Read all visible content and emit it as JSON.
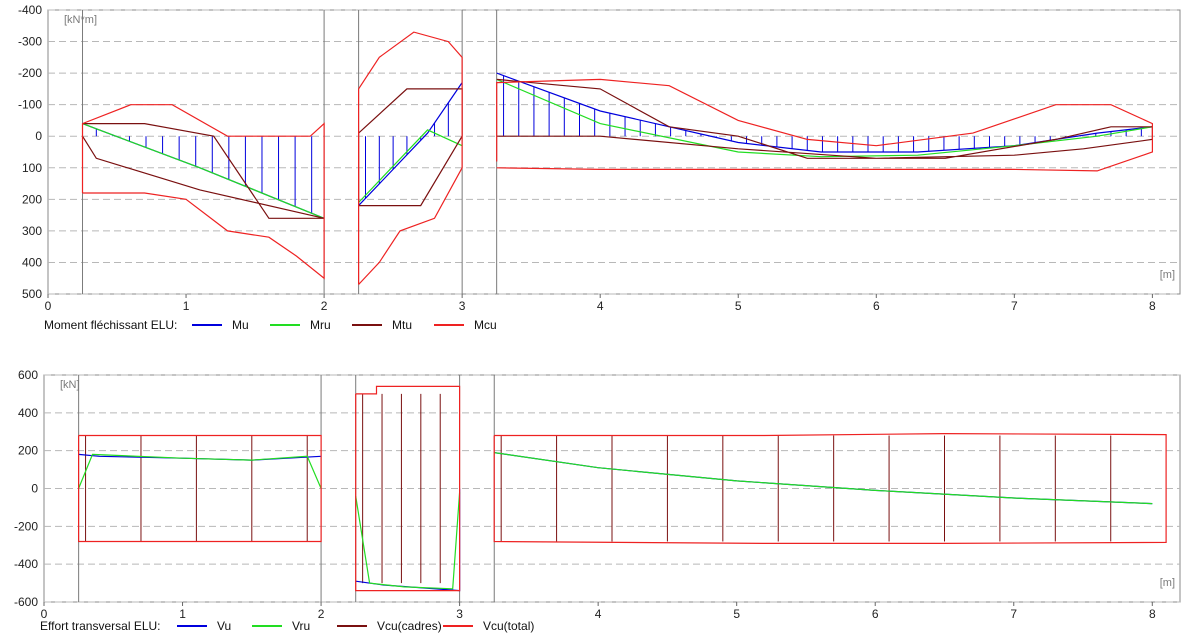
{
  "chart_data": [
    {
      "type": "line",
      "title": "Moment fléchissant ELU:",
      "unit_label": "[kN*m]",
      "x_unit_label": "[m]",
      "xlim": [
        0,
        8.2
      ],
      "ylim": [
        -400,
        500
      ],
      "y_inverted": true,
      "x_ticks": [
        0,
        1,
        2,
        3,
        4,
        5,
        6,
        7,
        8
      ],
      "y_ticks": [
        -400,
        -300,
        -200,
        -100,
        0,
        100,
        200,
        300,
        400,
        500
      ],
      "grid": true,
      "legend_position": "bottom-left",
      "supports": [
        0.25,
        2.0,
        2.25,
        3.0,
        3.25
      ],
      "series": [
        {
          "name": "Mu",
          "color": "#0000dd",
          "segments": [
            [
              [
                0.25,
                -40
              ],
              [
                1.1,
                100
              ],
              [
                2.0,
                260
              ]
            ],
            [
              [
                2.25,
                220
              ],
              [
                2.75,
                -10
              ],
              [
                3.0,
                -170
              ]
            ],
            [
              [
                3.25,
                -200
              ],
              [
                4.0,
                -80
              ],
              [
                5.0,
                20
              ],
              [
                5.6,
                50
              ],
              [
                6.3,
                50
              ],
              [
                7.0,
                30
              ],
              [
                7.6,
                -10
              ],
              [
                8.0,
                -30
              ]
            ]
          ]
        },
        {
          "name": "Mru",
          "color": "#22dd22",
          "segments": [
            [
              [
                0.25,
                -40
              ],
              [
                1.1,
                100
              ],
              [
                2.0,
                260
              ]
            ],
            [
              [
                2.25,
                210
              ],
              [
                2.75,
                -20
              ],
              [
                3.0,
                30
              ]
            ],
            [
              [
                3.25,
                -180
              ],
              [
                4.0,
                -40
              ],
              [
                5.0,
                50
              ],
              [
                5.6,
                65
              ],
              [
                6.3,
                60
              ],
              [
                7.0,
                30
              ],
              [
                7.6,
                0
              ],
              [
                8.0,
                -30
              ]
            ]
          ]
        },
        {
          "name": "Mtu",
          "color": "#7a1010",
          "segments": [
            [
              [
                0.25,
                -40
              ],
              [
                0.7,
                -40
              ],
              [
                1.2,
                0
              ],
              [
                1.6,
                260
              ],
              [
                2.0,
                260
              ],
              [
                1.1,
                170
              ],
              [
                0.35,
                70
              ],
              [
                0.25,
                0
              ]
            ],
            [
              [
                2.25,
                220
              ],
              [
                2.25,
                -10
              ],
              [
                2.6,
                -150
              ],
              [
                3.0,
                -150
              ],
              [
                3.0,
                0
              ],
              [
                2.7,
                220
              ],
              [
                2.25,
                220
              ]
            ],
            [
              [
                3.25,
                -180
              ],
              [
                4.0,
                -150
              ],
              [
                4.5,
                -30
              ],
              [
                5.0,
                0
              ],
              [
                5.5,
                70
              ],
              [
                6.5,
                70
              ],
              [
                7.3,
                10
              ],
              [
                7.7,
                -30
              ],
              [
                8.0,
                -30
              ],
              [
                8.0,
                10
              ],
              [
                7.5,
                40
              ],
              [
                7.0,
                60
              ],
              [
                6.0,
                70
              ],
              [
                5.0,
                40
              ],
              [
                4.0,
                0
              ],
              [
                3.25,
                0
              ]
            ]
          ]
        },
        {
          "name": "Mcu",
          "color": "#ee2222",
          "segments": [
            [
              [
                0.25,
                180
              ],
              [
                0.25,
                -40
              ],
              [
                0.6,
                -100
              ],
              [
                0.9,
                -100
              ],
              [
                1.3,
                0
              ],
              [
                1.6,
                0
              ],
              [
                1.9,
                0
              ],
              [
                2.0,
                -40
              ],
              [
                2.0,
                450
              ],
              [
                1.8,
                380
              ],
              [
                1.6,
                320
              ],
              [
                1.3,
                300
              ],
              [
                1.0,
                200
              ],
              [
                0.7,
                180
              ],
              [
                0.25,
                180
              ]
            ],
            [
              [
                2.25,
                470
              ],
              [
                2.25,
                -150
              ],
              [
                2.4,
                -250
              ],
              [
                2.65,
                -330
              ],
              [
                2.9,
                -300
              ],
              [
                3.0,
                -250
              ],
              [
                3.0,
                100
              ],
              [
                2.8,
                260
              ],
              [
                2.55,
                300
              ],
              [
                2.4,
                400
              ],
              [
                2.25,
                470
              ]
            ],
            [
              [
                3.25,
                80
              ],
              [
                3.25,
                -170
              ],
              [
                4.0,
                -180
              ],
              [
                4.5,
                -160
              ],
              [
                5.0,
                -50
              ],
              [
                5.5,
                10
              ],
              [
                6.0,
                30
              ],
              [
                6.7,
                -10
              ],
              [
                7.3,
                -100
              ],
              [
                7.7,
                -100
              ],
              [
                8.0,
                -40
              ],
              [
                8.0,
                50
              ],
              [
                7.6,
                110
              ],
              [
                7.0,
                105
              ],
              [
                6.0,
                105
              ],
              [
                5.0,
                105
              ],
              [
                4.0,
                105
              ],
              [
                3.25,
                100
              ]
            ]
          ]
        }
      ],
      "stirrup_rows": [
        {
          "color": "#0000dd",
          "span": [
            0.35,
            2.0
          ],
          "step": 0.12
        },
        {
          "color": "#0000dd",
          "span": [
            2.3,
            3.0
          ],
          "step": 0.1
        },
        {
          "color": "#0000dd",
          "span": [
            3.3,
            8.0
          ],
          "step": 0.11
        }
      ]
    },
    {
      "type": "line",
      "title": "Effort transversal ELU:",
      "unit_label": "[kN]",
      "x_unit_label": "[m]",
      "xlim": [
        0,
        8.2
      ],
      "ylim": [
        -600,
        600
      ],
      "y_inverted": false,
      "x_ticks": [
        0,
        1,
        2,
        3,
        4,
        5,
        6,
        7,
        8
      ],
      "y_ticks": [
        -600,
        -400,
        -200,
        0,
        200,
        400,
        600
      ],
      "grid": true,
      "legend_position": "bottom-left",
      "supports": [
        0.25,
        2.0,
        2.25,
        3.0,
        3.25
      ],
      "series": [
        {
          "name": "Vu",
          "color": "#0000dd",
          "segments": [
            [
              [
                0.25,
                180
              ],
              [
                0.4,
                170
              ],
              [
                1.0,
                160
              ],
              [
                1.5,
                150
              ],
              [
                2.0,
                170
              ]
            ],
            [
              [
                2.25,
                -490
              ],
              [
                2.45,
                -510
              ],
              [
                3.0,
                -540
              ],
              [
                3.0,
                0
              ]
            ],
            [
              [
                3.25,
                190
              ],
              [
                4.0,
                110
              ],
              [
                5.0,
                40
              ],
              [
                6.0,
                -10
              ],
              [
                7.0,
                -50
              ],
              [
                8.0,
                -80
              ]
            ]
          ]
        },
        {
          "name": "Vru",
          "color": "#22dd22",
          "segments": [
            [
              [
                0.25,
                0
              ],
              [
                0.35,
                180
              ],
              [
                1.0,
                160
              ],
              [
                1.5,
                150
              ],
              [
                1.9,
                170
              ],
              [
                2.0,
                0
              ]
            ],
            [
              [
                2.25,
                -40
              ],
              [
                2.35,
                -500
              ],
              [
                2.6,
                -520
              ],
              [
                2.95,
                -530
              ],
              [
                3.0,
                -20
              ]
            ],
            [
              [
                3.25,
                190
              ],
              [
                4.0,
                110
              ],
              [
                5.0,
                40
              ],
              [
                6.0,
                -10
              ],
              [
                7.0,
                -50
              ],
              [
                8.0,
                -80
              ]
            ]
          ]
        },
        {
          "name": "Vcu(cadres)",
          "color": "#7a1010",
          "segments": []
        },
        {
          "name": "Vcu(total)",
          "color": "#ee2222",
          "segments": [
            [
              [
                0.25,
                280
              ],
              [
                2.0,
                280
              ],
              [
                2.0,
                -280
              ],
              [
                0.25,
                -280
              ],
              [
                0.25,
                280
              ]
            ],
            [
              [
                2.25,
                500
              ],
              [
                2.4,
                500
              ],
              [
                2.4,
                540
              ],
              [
                3.0,
                540
              ],
              [
                3.0,
                -540
              ],
              [
                2.25,
                -540
              ],
              [
                2.25,
                500
              ]
            ],
            [
              [
                3.25,
                280
              ],
              [
                5.2,
                280
              ],
              [
                6.5,
                290
              ],
              [
                8.1,
                285
              ],
              [
                8.1,
                -285
              ],
              [
                6.5,
                -290
              ],
              [
                5.2,
                -290
              ],
              [
                3.25,
                -280
              ],
              [
                3.25,
                280
              ]
            ]
          ]
        }
      ],
      "stirrup_rows": [
        {
          "color": "#7a1010",
          "span": [
            0.3,
            2.0
          ],
          "step": 0.4
        },
        {
          "color": "#7a1010",
          "span": [
            2.3,
            3.0
          ],
          "step": 0.14
        },
        {
          "color": "#7a1010",
          "span": [
            3.3,
            8.1
          ],
          "step": 0.4
        }
      ]
    }
  ]
}
